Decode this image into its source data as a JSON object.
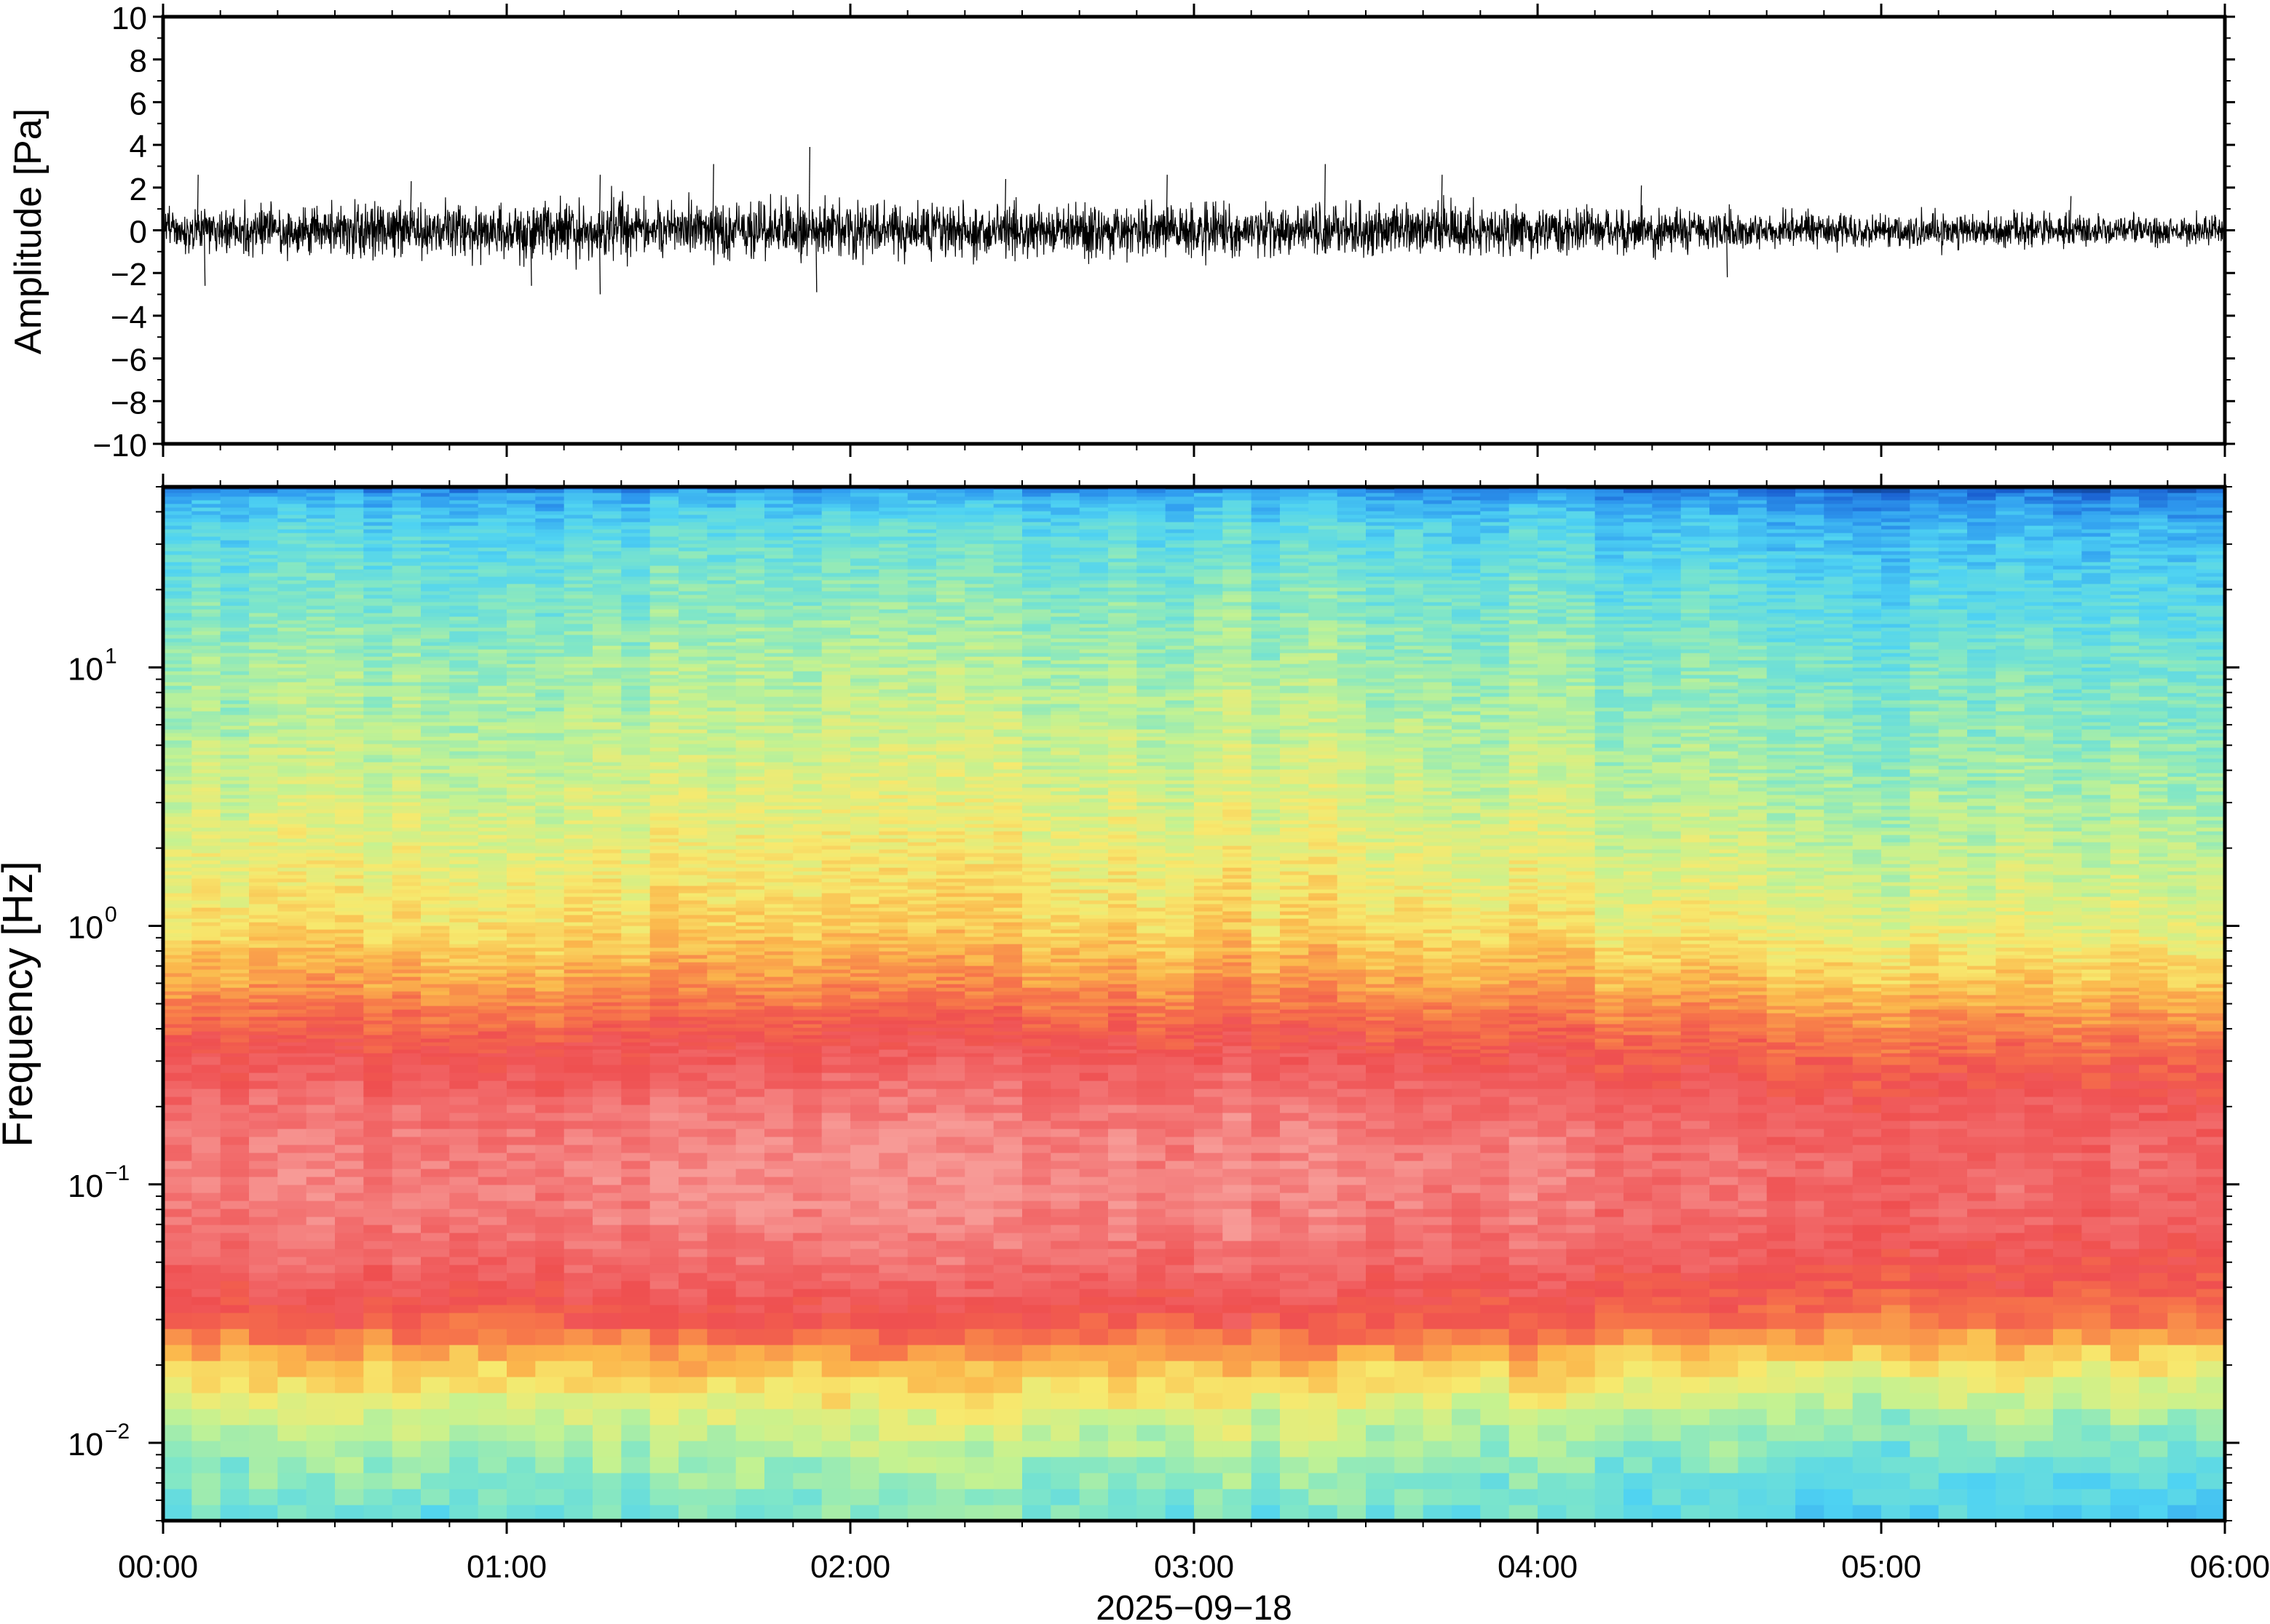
{
  "chart_data": [
    {
      "type": "line",
      "panel": "waveform",
      "ylabel": "Amplitude [Pa]",
      "ylim": [
        -10,
        10
      ],
      "y_ticks": [
        {
          "value": 10,
          "label": "10"
        },
        {
          "value": 8,
          "label": "8"
        },
        {
          "value": 6,
          "label": "6"
        },
        {
          "value": 4,
          "label": "4"
        },
        {
          "value": 2,
          "label": "2"
        },
        {
          "value": 0,
          "label": "0"
        },
        {
          "value": -2,
          "label": "−2"
        },
        {
          "value": -4,
          "label": "−4"
        },
        {
          "value": -6,
          "label": "−6"
        },
        {
          "value": -8,
          "label": "−8"
        },
        {
          "value": -10,
          "label": "−10"
        }
      ],
      "x_range_hours": [
        0,
        6
      ],
      "series": [
        {
          "color": "#000000",
          "envelope_hours": [
            0,
            0.25,
            0.5,
            0.75,
            1.0,
            1.25,
            1.5,
            1.75,
            2.0,
            2.25,
            2.5,
            2.75,
            3.0,
            3.25,
            3.5,
            3.75,
            4.0,
            4.25,
            4.5,
            4.75,
            5.0,
            5.25,
            5.5,
            5.75,
            6.0
          ],
          "envelope_pa": [
            1.0,
            1.0,
            1.05,
            1.1,
            1.15,
            1.2,
            1.15,
            1.2,
            1.2,
            1.1,
            1.05,
            1.1,
            1.1,
            1.05,
            1.05,
            1.05,
            1.0,
            0.9,
            0.8,
            0.75,
            0.7,
            0.7,
            0.7,
            0.65,
            0.6
          ],
          "peaks": [
            {
              "x": 0.1,
              "y": 2.6
            },
            {
              "x": 0.12,
              "y": -2.6
            },
            {
              "x": 0.72,
              "y": 2.3
            },
            {
              "x": 1.07,
              "y": -2.6
            },
            {
              "x": 1.27,
              "y": 2.6
            },
            {
              "x": 1.27,
              "y": -3.0
            },
            {
              "x": 1.6,
              "y": 3.1
            },
            {
              "x": 1.88,
              "y": 3.9
            },
            {
              "x": 1.9,
              "y": -2.9
            },
            {
              "x": 2.45,
              "y": 2.4
            },
            {
              "x": 2.92,
              "y": 2.6
            },
            {
              "x": 3.38,
              "y": 3.1
            },
            {
              "x": 3.72,
              "y": 2.6
            },
            {
              "x": 4.3,
              "y": 2.1
            },
            {
              "x": 4.55,
              "y": -2.2
            },
            {
              "x": 5.55,
              "y": 1.6
            }
          ]
        }
      ]
    },
    {
      "type": "heatmap",
      "panel": "spectrogram",
      "ylabel": "Frequency [Hz]",
      "xlabel": "2025−09−18",
      "yscale": "log",
      "ylim": [
        0.005,
        50
      ],
      "colormap": [
        "#08306b",
        "#1a5fd1",
        "#2f9cf0",
        "#4fd3f2",
        "#7fe6c8",
        "#c4f291",
        "#f7e96e",
        "#fbb74c",
        "#f7784a",
        "#ef4f50",
        "#f26d6d",
        "#f79a96"
      ],
      "y_ticks": [
        {
          "value": 10,
          "base": "10",
          "exp": "1"
        },
        {
          "value": 1,
          "base": "10",
          "exp": "0"
        },
        {
          "value": 0.1,
          "base": "10",
          "exp": "−1"
        },
        {
          "value": 0.01,
          "base": "10",
          "exp": "−2"
        }
      ],
      "x_range_hours": [
        0,
        6
      ],
      "x_ticks": [
        {
          "value": 0,
          "label": "00:00"
        },
        {
          "value": 1,
          "label": "01:00"
        },
        {
          "value": 2,
          "label": "02:00"
        },
        {
          "value": 3,
          "label": "03:00"
        },
        {
          "value": 4,
          "label": "04:00"
        },
        {
          "value": 5,
          "label": "05:00"
        },
        {
          "value": 6,
          "label": "06:00"
        }
      ],
      "level_profile": {
        "frequency_hz": [
          0.005,
          0.008,
          0.012,
          0.02,
          0.03,
          0.05,
          0.08,
          0.12,
          0.2,
          0.35,
          0.6,
          1,
          2,
          5,
          10,
          20,
          35,
          48,
          50
        ],
        "level": [
          0.32,
          0.38,
          0.45,
          0.6,
          0.78,
          0.88,
          0.93,
          0.94,
          0.9,
          0.8,
          0.66,
          0.56,
          0.5,
          0.44,
          0.4,
          0.34,
          0.28,
          0.18,
          0.0
        ]
      },
      "time_trend": {
        "hours": [
          0,
          1,
          2,
          3,
          3.7,
          4,
          4.5,
          5,
          5.5,
          6
        ],
        "level_offset": [
          0.0,
          0.01,
          0.03,
          0.03,
          0.02,
          0.0,
          -0.04,
          -0.05,
          -0.05,
          -0.06
        ]
      }
    }
  ]
}
